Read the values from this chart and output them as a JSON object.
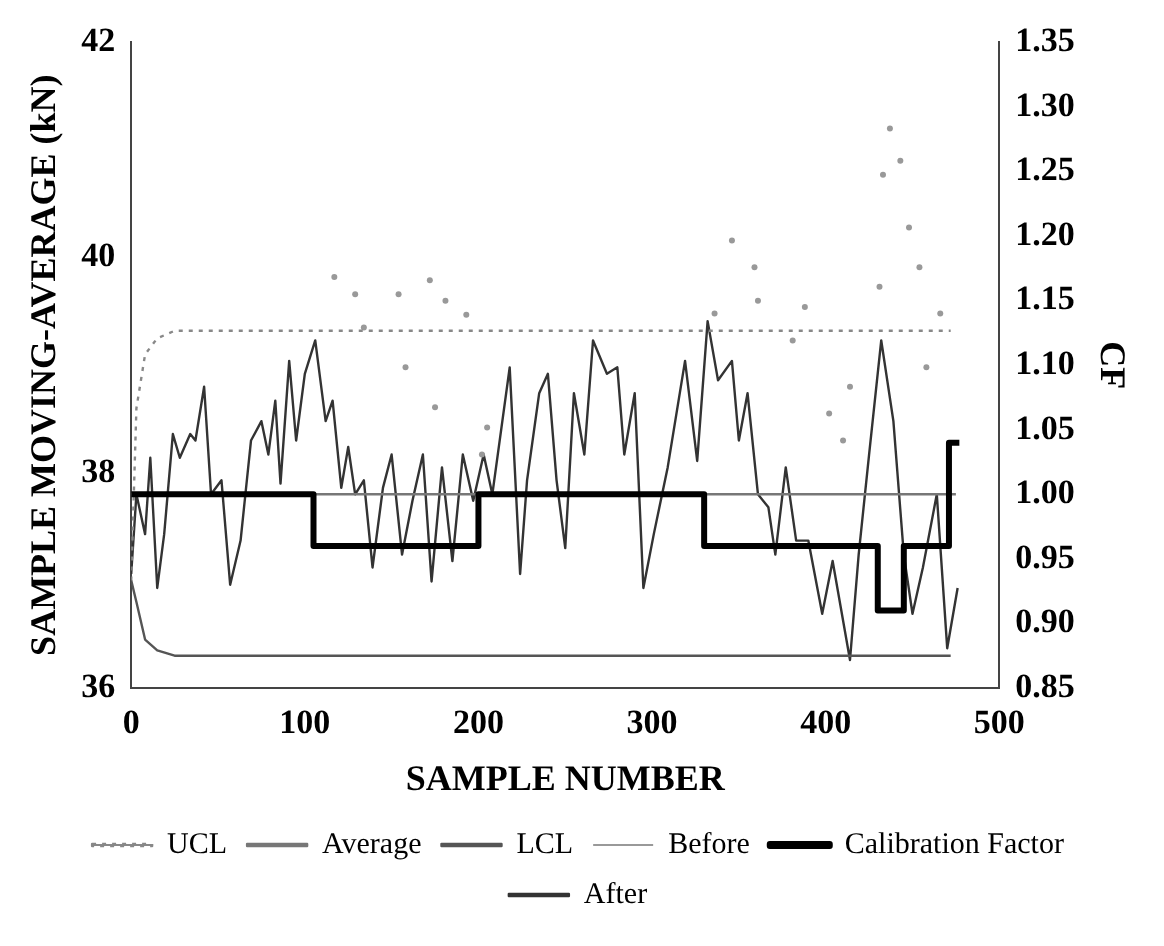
{
  "chart_data": {
    "type": "line",
    "xlabel": "SAMPLE NUMBER",
    "ylabel": "SAMPLE MOVING-AVERAGE (kN)",
    "y2label": "CF",
    "xlim": [
      0,
      500
    ],
    "xticks": [
      0,
      100,
      200,
      300,
      400,
      500
    ],
    "ylim": [
      36,
      42
    ],
    "yticks": [
      36,
      38,
      40,
      42
    ],
    "y2lim": [
      0.85,
      1.35
    ],
    "y2ticks": [
      0.85,
      {
        "value": 0.9,
        "label": "0.90"
      },
      0.95,
      {
        "value": 1,
        "label": "1.00"
      },
      1.05,
      {
        "value": 1.1,
        "label": "1.10"
      },
      1.15,
      {
        "value": 1.2,
        "label": "1.20"
      },
      1.25,
      {
        "value": 1.3,
        "label": "1.30"
      },
      1.35
    ],
    "legend": "bottom",
    "grid": false,
    "marker": "none",
    "series": [
      {
        "name": "UCL",
        "color": "#888888",
        "line_style": "dotted",
        "x": [
          0,
          3,
          8,
          15,
          25,
          472
        ],
        "values": [
          37.0,
          38.6,
          39.1,
          39.25,
          39.32,
          39.32
        ]
      },
      {
        "name": "Average",
        "color": "#777777",
        "line_style": "solid",
        "x": [
          0,
          475
        ],
        "values": [
          37.8,
          37.8
        ]
      },
      {
        "name": "LCL",
        "color": "#555555",
        "line_style": "solid",
        "x": [
          0,
          3,
          8,
          15,
          25,
          472
        ],
        "values": [
          37.0,
          36.8,
          36.45,
          36.35,
          36.3,
          36.3
        ]
      },
      {
        "name": "Before",
        "type": "scatter",
        "marker": "circle",
        "color": "#999999",
        "x": [
          117,
          129,
          134,
          154,
          172,
          181,
          193,
          158,
          175,
          205,
          202,
          346,
          359,
          361,
          336,
          388,
          381,
          402,
          410,
          437,
          443,
          433,
          448,
          431,
          454,
          466,
          458,
          414
        ],
        "values": [
          39.82,
          39.66,
          39.35,
          39.66,
          39.79,
          39.6,
          39.47,
          38.98,
          38.61,
          38.42,
          38.17,
          40.16,
          39.91,
          39.6,
          39.48,
          39.54,
          39.23,
          38.55,
          38.3,
          41.2,
          40.9,
          40.77,
          40.28,
          39.73,
          39.91,
          39.48,
          38.98,
          38.8
        ]
      },
      {
        "name": "Calibration Factor",
        "type": "step",
        "axis": "y2",
        "color": "#000000",
        "line_style": "solid",
        "x": [
          0,
          105,
          200,
          330,
          430,
          445,
          471,
          477
        ],
        "values": [
          1.0,
          0.96,
          1.0,
          0.96,
          0.91,
          0.96,
          1.04,
          1.04
        ]
      },
      {
        "name": "After",
        "color": "#333333",
        "line_style": "solid",
        "x": [
          0,
          3,
          8,
          11,
          15,
          19,
          24,
          28,
          34,
          37,
          42,
          46,
          52,
          57,
          63,
          69,
          75,
          79,
          83,
          86,
          91,
          95,
          100,
          106,
          112,
          116,
          121,
          125,
          129,
          134,
          139,
          145,
          150,
          156,
          162,
          168,
          173,
          179,
          185,
          191,
          197,
          203,
          208,
          218,
          224,
          228,
          235,
          240,
          245,
          250,
          255,
          261,
          266,
          274,
          280,
          284,
          290,
          295,
          301,
          309,
          319,
          326,
          332,
          338,
          346,
          350,
          355,
          361,
          367,
          371,
          377,
          383,
          390,
          398,
          404,
          414,
          419,
          425,
          432,
          439,
          445,
          450,
          456,
          464,
          470,
          476
        ],
        "values": [
          37.06,
          37.8,
          37.43,
          38.14,
          36.93,
          37.43,
          38.36,
          38.14,
          38.36,
          38.3,
          38.8,
          37.8,
          37.93,
          36.96,
          37.37,
          38.3,
          38.48,
          38.17,
          38.67,
          37.9,
          39.04,
          38.3,
          38.92,
          39.23,
          38.48,
          38.67,
          37.86,
          38.24,
          37.8,
          37.93,
          37.12,
          37.86,
          38.17,
          37.24,
          37.74,
          38.17,
          36.99,
          38.05,
          37.18,
          38.17,
          37.74,
          38.17,
          37.8,
          38.98,
          37.06,
          37.93,
          38.74,
          38.92,
          37.93,
          37.3,
          38.74,
          38.17,
          39.23,
          38.92,
          38.98,
          38.17,
          38.74,
          36.93,
          37.43,
          38.05,
          39.04,
          38.11,
          39.41,
          38.86,
          39.04,
          38.3,
          38.74,
          37.8,
          37.68,
          37.24,
          38.05,
          37.37,
          37.37,
          36.69,
          37.18,
          36.26,
          37.24,
          38.17,
          39.23,
          38.48,
          37.24,
          36.69,
          37.12,
          37.8,
          36.37,
          36.93
        ]
      }
    ]
  }
}
